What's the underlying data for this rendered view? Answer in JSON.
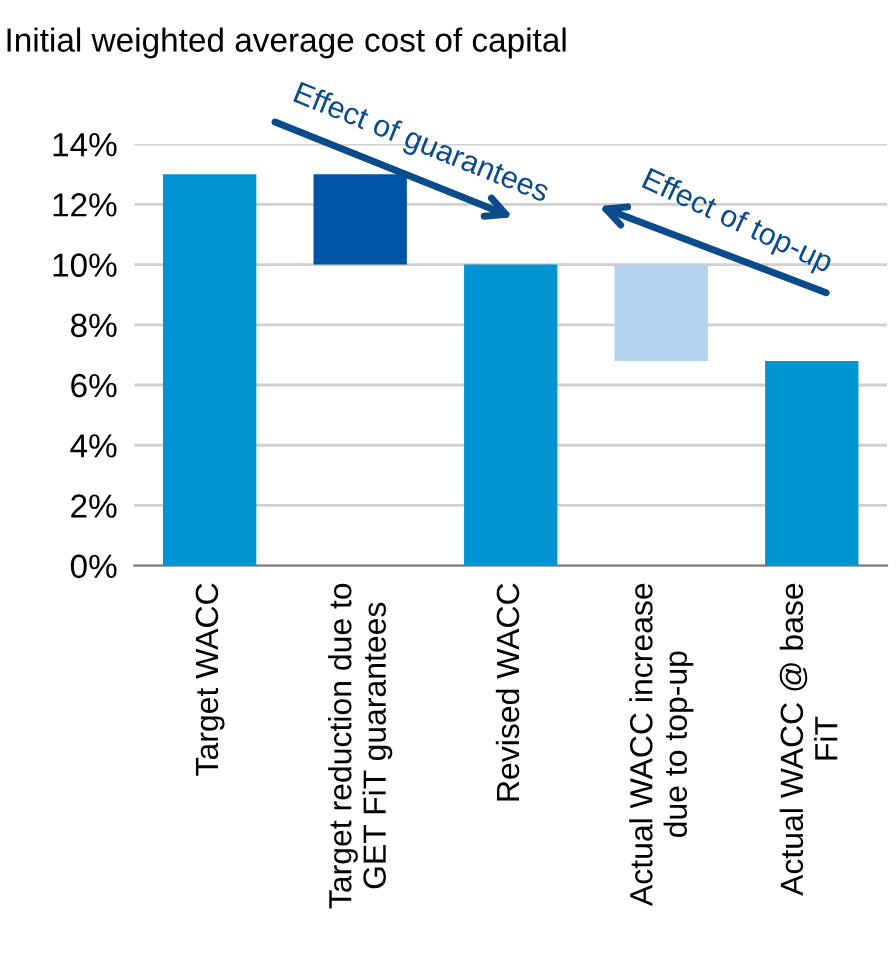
{
  "chart_data": {
    "type": "bar",
    "title": "Initial weighted average cost of capital",
    "categories": [
      "Target WACC",
      "Target reduction due to\nGET FiT guarantees",
      "Revised WACC",
      "Actual WACC increase\ndue to top-up",
      "Actual WACC @ base\nFiT"
    ],
    "values": [
      13,
      3,
      10,
      3.2,
      6.8
    ],
    "base": [
      0,
      10,
      0,
      6.8,
      0
    ],
    "colors": [
      "#0094d2",
      "#0054a6",
      "#0094d2",
      "#b4d1ee",
      "#0094d2"
    ],
    "ylim": [
      0,
      14
    ],
    "yticks": [
      {
        "value": 0,
        "label": "0%"
      },
      {
        "value": 2,
        "label": "2%"
      },
      {
        "value": 4,
        "label": "4%"
      },
      {
        "value": 6,
        "label": "6%"
      },
      {
        "value": 8,
        "label": "8%"
      },
      {
        "value": 10,
        "label": "10%"
      },
      {
        "value": 12,
        "label": "12%"
      },
      {
        "value": 14,
        "label": "14%"
      }
    ],
    "grid": "y",
    "annotations": [
      "Effect of guarantees",
      "Effect of top-up"
    ]
  }
}
